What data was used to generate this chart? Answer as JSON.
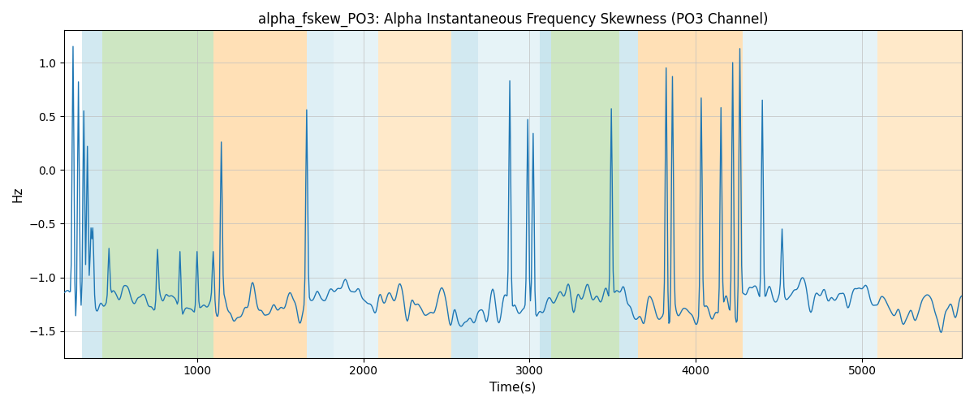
{
  "title": "alpha_fskew_PO3: Alpha Instantaneous Frequency Skewness (PO3 Channel)",
  "xlabel": "Time(s)",
  "ylabel": "Hz",
  "xlim": [
    200,
    5600
  ],
  "ylim": [
    -1.75,
    1.3
  ],
  "line_color": "#1f77b4",
  "line_width": 1.0,
  "yticks": [
    1.0,
    0.5,
    0.0,
    -0.5,
    -1.0,
    -1.5
  ],
  "xticks": [
    1000,
    2000,
    3000,
    4000,
    5000
  ],
  "bands": [
    {
      "xmin": 310,
      "xmax": 430,
      "color": "#add8e6",
      "alpha": 0.55
    },
    {
      "xmin": 430,
      "xmax": 1100,
      "color": "#90c878",
      "alpha": 0.45
    },
    {
      "xmin": 1100,
      "xmax": 1660,
      "color": "#ffc87a",
      "alpha": 0.55
    },
    {
      "xmin": 1660,
      "xmax": 1820,
      "color": "#add8e6",
      "alpha": 0.4
    },
    {
      "xmin": 1820,
      "xmax": 2090,
      "color": "#add8e6",
      "alpha": 0.3
    },
    {
      "xmin": 2090,
      "xmax": 2530,
      "color": "#ffc87a",
      "alpha": 0.4
    },
    {
      "xmin": 2530,
      "xmax": 2690,
      "color": "#add8e6",
      "alpha": 0.55
    },
    {
      "xmin": 2690,
      "xmax": 3060,
      "color": "#add8e6",
      "alpha": 0.3
    },
    {
      "xmin": 3060,
      "xmax": 3130,
      "color": "#add8e6",
      "alpha": 0.65
    },
    {
      "xmin": 3130,
      "xmax": 3540,
      "color": "#90c878",
      "alpha": 0.45
    },
    {
      "xmin": 3540,
      "xmax": 3650,
      "color": "#add8e6",
      "alpha": 0.55
    },
    {
      "xmin": 3650,
      "xmax": 3840,
      "color": "#ffc87a",
      "alpha": 0.55
    },
    {
      "xmin": 3840,
      "xmax": 4280,
      "color": "#ffc87a",
      "alpha": 0.55
    },
    {
      "xmin": 4280,
      "xmax": 4740,
      "color": "#add8e6",
      "alpha": 0.3
    },
    {
      "xmin": 4740,
      "xmax": 5090,
      "color": "#add8e6",
      "alpha": 0.3
    },
    {
      "xmin": 5090,
      "xmax": 5600,
      "color": "#ffc87a",
      "alpha": 0.4
    }
  ],
  "seed": 42,
  "t_start": 200,
  "t_end": 5600,
  "n_points": 1000
}
